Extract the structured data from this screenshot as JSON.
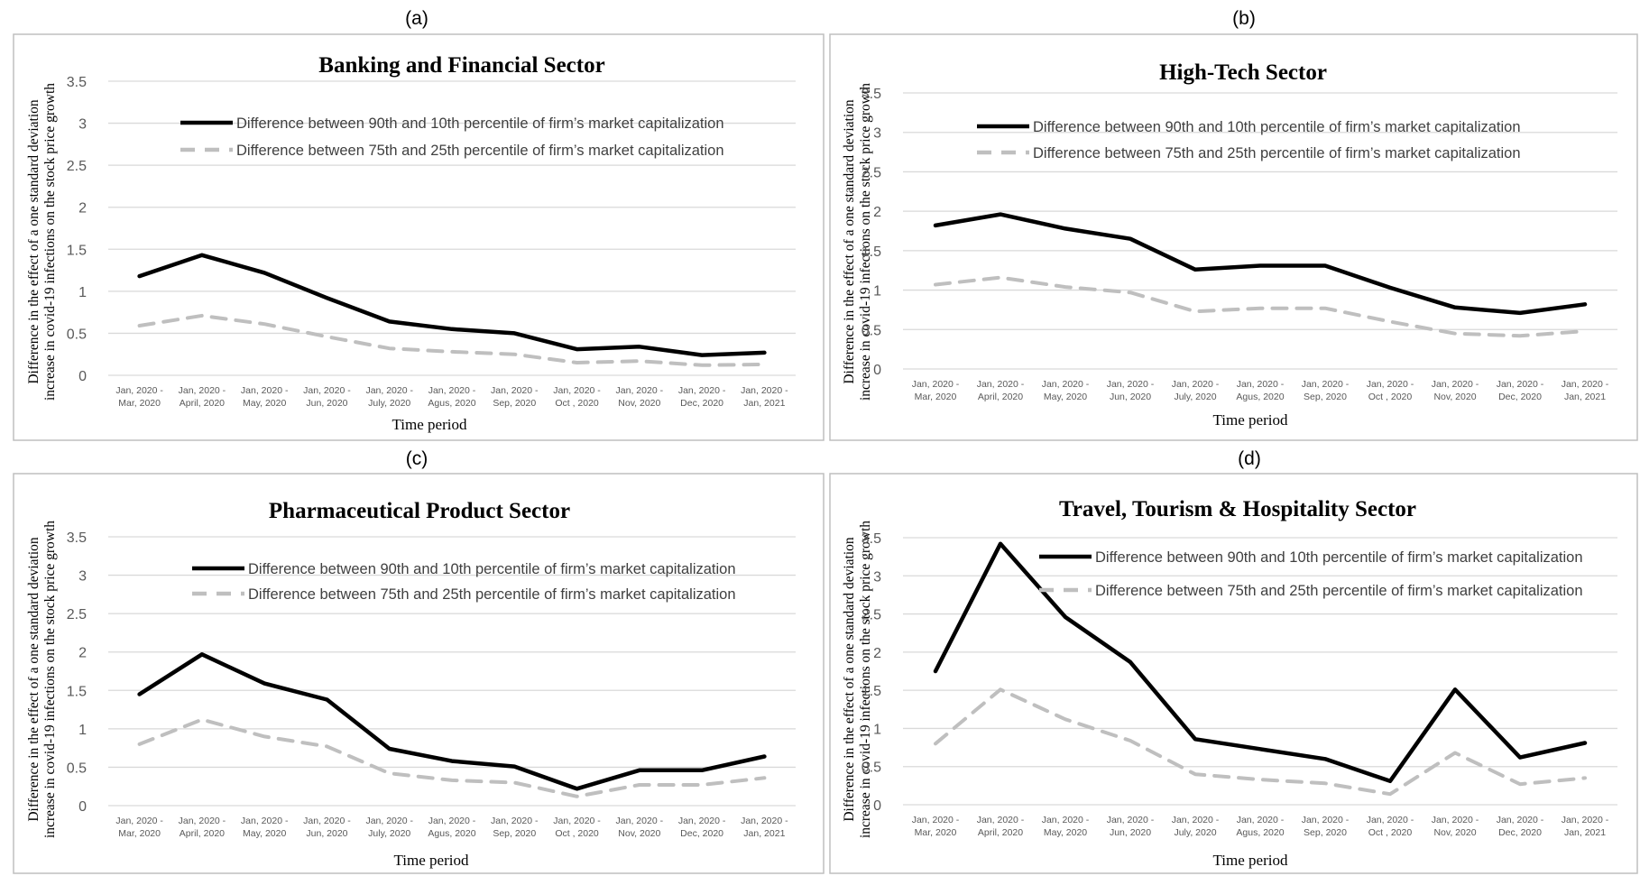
{
  "figure": {
    "x_axis_label": "Time period",
    "y_axis_label_line1": "Difference in the effect of a one standard deviation",
    "y_axis_label_line2": "increase in covid-19 infections on the stock price growth",
    "colors": {
      "series_90_10": "#000000",
      "series_75_25": "#bfbfbf",
      "grid": "#d9d9d9",
      "frame": "#bfbfbf"
    }
  },
  "chart_data": [
    {
      "panel_label": "(a)",
      "type": "line",
      "title": "Banking and Financial Sector",
      "xlabel": "Time period",
      "ylabel": "Difference in the effect of a one standard deviation increase in covid-19 infections on the stock price growth",
      "ylim": [
        0,
        3.5
      ],
      "yticks": [
        "0",
        "0.5",
        "1",
        "1.5",
        "2",
        "2.5",
        "3",
        "3.5"
      ],
      "grid": true,
      "legend_position": "top",
      "categories": [
        [
          "Jan, 2020 -",
          "Mar, 2020"
        ],
        [
          "Jan, 2020 -",
          "April, 2020"
        ],
        [
          "Jan, 2020 -",
          "May, 2020"
        ],
        [
          "Jan, 2020 -",
          "Jun, 2020"
        ],
        [
          "Jan, 2020 -",
          "July, 2020"
        ],
        [
          "Jan, 2020 -",
          "Agus, 2020"
        ],
        [
          "Jan, 2020 -",
          "Sep, 2020"
        ],
        [
          "Jan, 2020 -",
          "Oct , 2020"
        ],
        [
          "Jan, 2020 -",
          "Nov, 2020"
        ],
        [
          "Jan, 2020 -",
          "Dec, 2020"
        ],
        [
          "Jan, 2020 -",
          "Jan, 2021"
        ]
      ],
      "series": [
        {
          "name": "Difference between 90th and 10th percentile of firm’s market capitalization",
          "style": "solid",
          "color": "#000000",
          "values": [
            1.18,
            1.43,
            1.22,
            0.92,
            0.64,
            0.55,
            0.5,
            0.31,
            0.34,
            0.24,
            0.27
          ]
        },
        {
          "name": "Difference between 75th and 25th percentile of firm’s market capitalization",
          "style": "dashed",
          "color": "#bfbfbf",
          "values": [
            0.59,
            0.71,
            0.61,
            0.46,
            0.32,
            0.28,
            0.25,
            0.15,
            0.17,
            0.12,
            0.13
          ]
        }
      ]
    },
    {
      "panel_label": "(b)",
      "type": "line",
      "title": "High-Tech Sector",
      "xlabel": "Time period",
      "ylabel": "Difference in the effect of a one standard deviation increase in covid-19 infections on the stock price growth",
      "ylim": [
        0,
        3.5
      ],
      "yticks": [
        "0",
        "0.5",
        "1",
        "1.5",
        "2",
        "2.5",
        "3",
        "3.5"
      ],
      "grid": true,
      "legend_position": "top",
      "categories": [
        [
          "Jan, 2020 -",
          "Mar, 2020"
        ],
        [
          "Jan, 2020 -",
          "April, 2020"
        ],
        [
          "Jan, 2020 -",
          "May, 2020"
        ],
        [
          "Jan, 2020 -",
          "Jun, 2020"
        ],
        [
          "Jan, 2020 -",
          "July, 2020"
        ],
        [
          "Jan, 2020 -",
          "Agus, 2020"
        ],
        [
          "Jan, 2020 -",
          "Sep, 2020"
        ],
        [
          "Jan, 2020 -",
          "Oct , 2020"
        ],
        [
          "Jan, 2020 -",
          "Nov, 2020"
        ],
        [
          "Jan, 2020 -",
          "Dec, 2020"
        ],
        [
          "Jan, 2020 -",
          "Jan, 2021"
        ]
      ],
      "series": [
        {
          "name": "Difference between 90th and 10th percentile of firm’s market capitalization",
          "style": "solid",
          "color": "#000000",
          "values": [
            1.82,
            1.96,
            1.78,
            1.65,
            1.26,
            1.31,
            1.31,
            1.03,
            0.78,
            0.71,
            0.82
          ]
        },
        {
          "name": "Difference between 75th and 25th percentile of firm’s market capitalization",
          "style": "dashed",
          "color": "#bfbfbf",
          "values": [
            1.07,
            1.16,
            1.04,
            0.97,
            0.73,
            0.77,
            0.77,
            0.6,
            0.45,
            0.42,
            0.48
          ]
        }
      ]
    },
    {
      "panel_label": "(c)",
      "type": "line",
      "title": "Pharmaceutical Product Sector",
      "xlabel": "Time period",
      "ylabel": "Difference in the effect of a one standard deviation increase in covid-19 infections on the stock price growth",
      "ylim": [
        0,
        3.5
      ],
      "yticks": [
        "0",
        "0.5",
        "1",
        "1.5",
        "2",
        "2.5",
        "3",
        "3.5"
      ],
      "grid": true,
      "legend_position": "top",
      "categories": [
        [
          "Jan, 2020 -",
          "Mar, 2020"
        ],
        [
          "Jan, 2020 -",
          "April, 2020"
        ],
        [
          "Jan, 2020 -",
          "May, 2020"
        ],
        [
          "Jan, 2020 -",
          "Jun, 2020"
        ],
        [
          "Jan, 2020 -",
          "July, 2020"
        ],
        [
          "Jan, 2020 -",
          "Agus, 2020"
        ],
        [
          "Jan, 2020 -",
          "Sep, 2020"
        ],
        [
          "Jan, 2020 -",
          "Oct , 2020"
        ],
        [
          "Jan, 2020 -",
          "Nov, 2020"
        ],
        [
          "Jan, 2020 -",
          "Dec, 2020"
        ],
        [
          "Jan, 2020 -",
          "Jan, 2021"
        ]
      ],
      "series": [
        {
          "name": "Difference between 90th and 10th percentile of firm’s market capitalization",
          "style": "solid",
          "color": "#000000",
          "values": [
            1.45,
            1.97,
            1.59,
            1.38,
            0.74,
            0.58,
            0.51,
            0.22,
            0.46,
            0.46,
            0.64
          ]
        },
        {
          "name": "Difference between 75th and 25th percentile of firm’s market capitalization",
          "style": "dashed",
          "color": "#bfbfbf",
          "values": [
            0.8,
            1.12,
            0.9,
            0.77,
            0.42,
            0.33,
            0.3,
            0.12,
            0.27,
            0.27,
            0.36
          ]
        }
      ]
    },
    {
      "panel_label": "(d)",
      "type": "line",
      "title": "Travel, Tourism & Hospitality Sector",
      "xlabel": "Time period",
      "ylabel": "Difference in the effect of a one standard deviation increase in covid-19 infections on the stock price growth",
      "ylim": [
        0,
        3.5
      ],
      "yticks": [
        "0",
        "0.5",
        "1",
        "1.5",
        "2",
        "2.5",
        "3",
        "3.5"
      ],
      "grid": true,
      "legend_position": "top-right",
      "categories": [
        [
          "Jan, 2020 -",
          "Mar, 2020"
        ],
        [
          "Jan, 2020 -",
          "April, 2020"
        ],
        [
          "Jan, 2020 -",
          "May, 2020"
        ],
        [
          "Jan, 2020 -",
          "Jun, 2020"
        ],
        [
          "Jan, 2020 -",
          "July, 2020"
        ],
        [
          "Jan, 2020 -",
          "Agus, 2020"
        ],
        [
          "Jan, 2020 -",
          "Sep, 2020"
        ],
        [
          "Jan, 2020 -",
          "Oct , 2020"
        ],
        [
          "Jan, 2020 -",
          "Nov, 2020"
        ],
        [
          "Jan, 2020 -",
          "Dec, 2020"
        ],
        [
          "Jan, 2020 -",
          "Jan, 2021"
        ]
      ],
      "series": [
        {
          "name": "Difference between 90th and 10th percentile of firm’s market capitalization",
          "style": "solid",
          "color": "#000000",
          "values": [
            1.75,
            3.42,
            2.46,
            1.87,
            0.86,
            0.73,
            0.6,
            0.31,
            1.51,
            0.62,
            0.81
          ]
        },
        {
          "name": "Difference between 75th and 25th percentile of firm’s market capitalization",
          "style": "dashed",
          "color": "#bfbfbf",
          "values": [
            0.8,
            1.51,
            1.12,
            0.84,
            0.4,
            0.33,
            0.28,
            0.14,
            0.68,
            0.27,
            0.35
          ]
        }
      ]
    }
  ]
}
